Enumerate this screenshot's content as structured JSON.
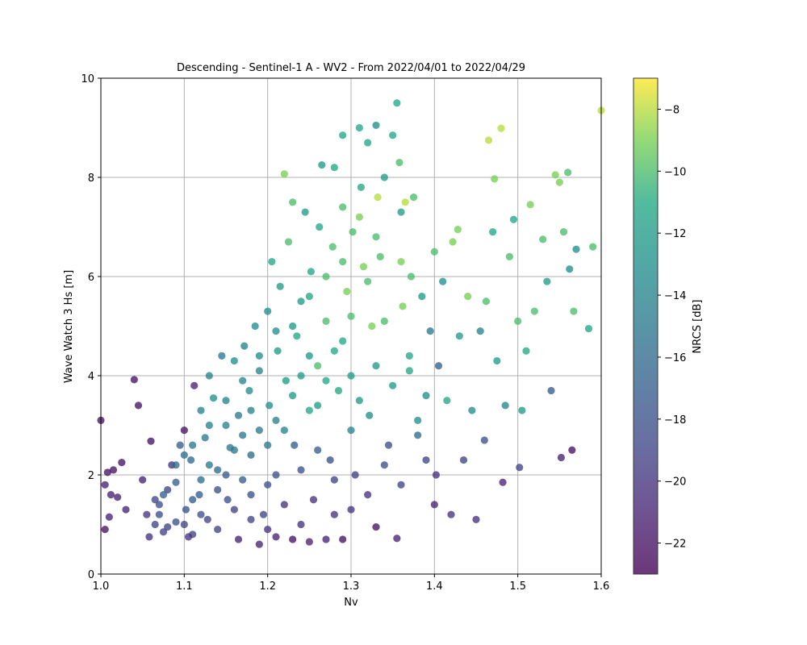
{
  "chart_data": {
    "type": "scatter",
    "title": "Descending - Sentinel-1 A - WV2 - From 2022/04/01 to 2022/04/29",
    "xlabel": "Nv",
    "ylabel": "Wave Watch 3 Hs [m]",
    "xlim": [
      1.0,
      1.6
    ],
    "ylim": [
      0,
      10
    ],
    "xticks": [
      1.0,
      1.1,
      1.2,
      1.3,
      1.4,
      1.5,
      1.6
    ],
    "xtick_labels": [
      "1.0",
      "1.1",
      "1.2",
      "1.3",
      "1.4",
      "1.5",
      "1.6"
    ],
    "yticks": [
      0,
      2,
      4,
      6,
      8,
      10
    ],
    "ytick_labels": [
      "0",
      "2",
      "4",
      "6",
      "8",
      "10"
    ],
    "grid": true,
    "colormap": "viridis",
    "colorbar": {
      "label": "NRCS [dB]",
      "range": [
        -23,
        -7
      ],
      "ticks": [
        -22,
        -20,
        -18,
        -16,
        -14,
        -12,
        -10,
        -8
      ],
      "tick_labels": [
        "−22",
        "−20",
        "−18",
        "−16",
        "−14",
        "−12",
        "−10",
        "−8"
      ]
    },
    "points": [
      [
        1.0,
        3.1,
        -22
      ],
      [
        1.005,
        1.8,
        -21
      ],
      [
        1.008,
        2.05,
        -22
      ],
      [
        1.01,
        1.15,
        -21
      ],
      [
        1.015,
        2.1,
        -22
      ],
      [
        1.02,
        1.55,
        -21
      ],
      [
        1.005,
        0.9,
        -22
      ],
      [
        1.012,
        1.6,
        -21
      ],
      [
        1.025,
        2.25,
        -22
      ],
      [
        1.03,
        1.3,
        -21
      ],
      [
        1.04,
        3.92,
        -22
      ],
      [
        1.045,
        3.4,
        -22
      ],
      [
        1.05,
        1.9,
        -21
      ],
      [
        1.055,
        1.2,
        -20
      ],
      [
        1.06,
        2.68,
        -22
      ],
      [
        1.058,
        0.75,
        -20
      ],
      [
        1.065,
        1.5,
        -19
      ],
      [
        1.07,
        1.4,
        -18
      ],
      [
        1.075,
        0.85,
        -19
      ],
      [
        1.08,
        1.7,
        -19
      ],
      [
        1.085,
        2.2,
        -20
      ],
      [
        1.09,
        1.05,
        -18
      ],
      [
        1.095,
        2.6,
        -17
      ],
      [
        1.1,
        2.9,
        -22
      ],
      [
        1.102,
        1.3,
        -18
      ],
      [
        1.108,
        2.3,
        -16
      ],
      [
        1.11,
        0.8,
        -19
      ],
      [
        1.112,
        3.8,
        -21
      ],
      [
        1.118,
        1.6,
        -17
      ],
      [
        1.12,
        3.3,
        -14
      ],
      [
        1.125,
        2.75,
        -15
      ],
      [
        1.128,
        1.1,
        -19
      ],
      [
        1.13,
        4.0,
        -14
      ],
      [
        1.135,
        3.55,
        -13
      ],
      [
        1.14,
        2.1,
        -16
      ],
      [
        1.145,
        4.4,
        -15
      ],
      [
        1.15,
        3.0,
        -14
      ],
      [
        1.152,
        1.5,
        -18
      ],
      [
        1.155,
        2.55,
        -15
      ],
      [
        1.16,
        4.3,
        -13
      ],
      [
        1.165,
        3.2,
        -15
      ],
      [
        1.17,
        1.9,
        -17
      ],
      [
        1.172,
        4.6,
        -14
      ],
      [
        1.178,
        3.7,
        -13
      ],
      [
        1.18,
        2.4,
        -16
      ],
      [
        1.185,
        5.0,
        -13
      ],
      [
        1.19,
        4.1,
        -14
      ],
      [
        1.195,
        1.2,
        -19
      ],
      [
        1.2,
        5.3,
        -13
      ],
      [
        1.202,
        3.4,
        -13
      ],
      [
        1.205,
        6.3,
        -11
      ],
      [
        1.21,
        2.0,
        -18
      ],
      [
        1.212,
        4.5,
        -12
      ],
      [
        1.215,
        5.8,
        -12
      ],
      [
        1.22,
        8.07,
        -9
      ],
      [
        1.222,
        3.9,
        -12
      ],
      [
        1.225,
        6.7,
        -10
      ],
      [
        1.23,
        7.5,
        -10
      ],
      [
        1.232,
        2.6,
        -17
      ],
      [
        1.235,
        4.8,
        -11
      ],
      [
        1.24,
        5.5,
        -12
      ],
      [
        1.245,
        7.3,
        -12
      ],
      [
        1.25,
        3.3,
        -11
      ],
      [
        1.252,
        6.1,
        -11
      ],
      [
        1.255,
        1.5,
        -20
      ],
      [
        1.26,
        4.2,
        -10
      ],
      [
        1.262,
        7.0,
        -11
      ],
      [
        1.265,
        8.25,
        -12
      ],
      [
        1.27,
        5.1,
        -10
      ],
      [
        1.275,
        2.3,
        -18
      ],
      [
        1.278,
        6.6,
        -10
      ],
      [
        1.28,
        8.2,
        -11
      ],
      [
        1.285,
        3.7,
        -11
      ],
      [
        1.29,
        7.4,
        -10
      ],
      [
        1.29,
        8.85,
        -11
      ],
      [
        1.295,
        5.7,
        -9
      ],
      [
        1.3,
        4.0,
        -12
      ],
      [
        1.302,
        6.9,
        -10
      ],
      [
        1.305,
        2.0,
        -19
      ],
      [
        1.31,
        9.0,
        -11
      ],
      [
        1.312,
        7.8,
        -11
      ],
      [
        1.315,
        6.2,
        -9
      ],
      [
        1.32,
        8.7,
        -11
      ],
      [
        1.322,
        3.2,
        -13
      ],
      [
        1.325,
        5.0,
        -9
      ],
      [
        1.33,
        9.05,
        -13
      ],
      [
        1.332,
        7.6,
        -8
      ],
      [
        1.335,
        6.4,
        -10
      ],
      [
        1.34,
        8.0,
        -12
      ],
      [
        1.345,
        2.6,
        -18
      ],
      [
        1.35,
        8.85,
        -11
      ],
      [
        1.355,
        9.5,
        -11
      ],
      [
        1.358,
        8.3,
        -10
      ],
      [
        1.36,
        7.3,
        -12
      ],
      [
        1.362,
        5.4,
        -9
      ],
      [
        1.365,
        7.5,
        -8
      ],
      [
        1.37,
        4.4,
        -11
      ],
      [
        1.372,
        6.0,
        -10
      ],
      [
        1.375,
        7.6,
        -10
      ],
      [
        1.38,
        3.1,
        -13
      ],
      [
        1.385,
        5.6,
        -12
      ],
      [
        1.39,
        2.3,
        -19
      ],
      [
        1.395,
        4.9,
        -15
      ],
      [
        1.4,
        6.5,
        -10
      ],
      [
        1.402,
        2.0,
        -20
      ],
      [
        1.405,
        4.2,
        -17
      ],
      [
        1.41,
        5.9,
        -13
      ],
      [
        1.415,
        3.5,
        -11
      ],
      [
        1.42,
        1.2,
        -20
      ],
      [
        1.422,
        6.7,
        -9
      ],
      [
        1.428,
        6.95,
        -9
      ],
      [
        1.43,
        4.8,
        -12
      ],
      [
        1.435,
        2.3,
        -19
      ],
      [
        1.44,
        5.6,
        -9
      ],
      [
        1.445,
        3.3,
        -13
      ],
      [
        1.45,
        1.1,
        -20
      ],
      [
        1.455,
        4.9,
        -14
      ],
      [
        1.46,
        2.7,
        -18
      ],
      [
        1.462,
        5.5,
        -10
      ],
      [
        1.465,
        8.75,
        -8
      ],
      [
        1.47,
        6.9,
        -11
      ],
      [
        1.472,
        7.97,
        -9
      ],
      [
        1.475,
        4.3,
        -12
      ],
      [
        1.48,
        8.99,
        -8
      ],
      [
        1.482,
        1.85,
        -21
      ],
      [
        1.485,
        3.4,
        -14
      ],
      [
        1.49,
        6.4,
        -10
      ],
      [
        1.495,
        7.15,
        -11
      ],
      [
        1.5,
        5.1,
        -10
      ],
      [
        1.502,
        2.15,
        -19
      ],
      [
        1.505,
        3.3,
        -12
      ],
      [
        1.51,
        4.5,
        -11
      ],
      [
        1.515,
        7.45,
        -9
      ],
      [
        1.52,
        5.3,
        -10
      ],
      [
        1.53,
        6.75,
        -10
      ],
      [
        1.535,
        5.9,
        -12
      ],
      [
        1.54,
        3.7,
        -17
      ],
      [
        1.545,
        8.05,
        -9
      ],
      [
        1.55,
        7.9,
        -9
      ],
      [
        1.552,
        2.35,
        -21
      ],
      [
        1.555,
        6.9,
        -10
      ],
      [
        1.56,
        8.1,
        -10
      ],
      [
        1.562,
        6.15,
        -13
      ],
      [
        1.565,
        2.5,
        -22
      ],
      [
        1.567,
        5.3,
        -10
      ],
      [
        1.57,
        6.55,
        -13
      ],
      [
        1.585,
        4.95,
        -11
      ],
      [
        1.59,
        6.6,
        -10
      ],
      [
        1.6,
        9.35,
        -8
      ],
      [
        1.11,
        1.5,
        -17
      ],
      [
        1.12,
        1.9,
        -16
      ],
      [
        1.13,
        2.2,
        -15
      ],
      [
        1.14,
        1.7,
        -18
      ],
      [
        1.15,
        2.0,
        -17
      ],
      [
        1.16,
        1.3,
        -19
      ],
      [
        1.17,
        2.8,
        -15
      ],
      [
        1.18,
        1.6,
        -18
      ],
      [
        1.19,
        2.9,
        -15
      ],
      [
        1.2,
        1.8,
        -18
      ],
      [
        1.21,
        3.1,
        -14
      ],
      [
        1.22,
        1.4,
        -20
      ],
      [
        1.23,
        3.6,
        -12
      ],
      [
        1.24,
        2.1,
        -18
      ],
      [
        1.25,
        4.4,
        -12
      ],
      [
        1.26,
        2.5,
        -17
      ],
      [
        1.27,
        3.9,
        -11
      ],
      [
        1.28,
        1.9,
        -19
      ],
      [
        1.29,
        4.7,
        -11
      ],
      [
        1.3,
        2.9,
        -14
      ],
      [
        1.31,
        3.5,
        -12
      ],
      [
        1.32,
        1.6,
        -20
      ],
      [
        1.33,
        4.2,
        -12
      ],
      [
        1.34,
        2.2,
        -18
      ],
      [
        1.35,
        3.8,
        -12
      ],
      [
        1.36,
        1.8,
        -19
      ],
      [
        1.37,
        4.1,
        -11
      ],
      [
        1.38,
        2.8,
        -16
      ],
      [
        1.39,
        3.6,
        -13
      ],
      [
        1.4,
        1.4,
        -21
      ],
      [
        1.07,
        1.2,
        -18
      ],
      [
        1.08,
        0.95,
        -19
      ],
      [
        1.09,
        1.85,
        -17
      ],
      [
        1.1,
        2.4,
        -16
      ],
      [
        1.1,
        1.0,
        -19
      ],
      [
        1.105,
        0.75,
        -20
      ],
      [
        1.165,
        0.7,
        -21
      ],
      [
        1.19,
        0.6,
        -21
      ],
      [
        1.21,
        0.75,
        -21
      ],
      [
        1.23,
        0.7,
        -22
      ],
      [
        1.25,
        0.65,
        -21
      ],
      [
        1.27,
        0.7,
        -21
      ],
      [
        1.29,
        0.7,
        -22
      ],
      [
        1.33,
        0.95,
        -22
      ],
      [
        1.355,
        0.72,
        -21
      ],
      [
        1.3,
        1.3,
        -20
      ],
      [
        1.28,
        1.2,
        -20
      ],
      [
        1.24,
        1.0,
        -20
      ],
      [
        1.2,
        0.9,
        -20
      ],
      [
        1.18,
        1.1,
        -19
      ],
      [
        1.14,
        0.9,
        -19
      ],
      [
        1.12,
        1.2,
        -18
      ],
      [
        1.16,
        2.5,
        -15
      ],
      [
        1.18,
        3.3,
        -14
      ],
      [
        1.2,
        2.6,
        -15
      ],
      [
        1.22,
        2.9,
        -14
      ],
      [
        1.24,
        4.0,
        -12
      ],
      [
        1.26,
        3.4,
        -12
      ],
      [
        1.28,
        4.5,
        -11
      ],
      [
        1.3,
        5.2,
        -10
      ],
      [
        1.32,
        5.9,
        -10
      ],
      [
        1.34,
        5.1,
        -10
      ],
      [
        1.36,
        6.3,
        -9
      ],
      [
        1.33,
        6.8,
        -10
      ],
      [
        1.31,
        7.2,
        -9
      ],
      [
        1.29,
        6.3,
        -10
      ],
      [
        1.27,
        6.0,
        -10
      ],
      [
        1.25,
        5.6,
        -11
      ],
      [
        1.23,
        5.0,
        -12
      ],
      [
        1.21,
        4.9,
        -13
      ],
      [
        1.19,
        4.4,
        -13
      ],
      [
        1.17,
        3.9,
        -14
      ],
      [
        1.15,
        3.5,
        -14
      ],
      [
        1.13,
        3.0,
        -14
      ],
      [
        1.11,
        2.6,
        -15
      ],
      [
        1.09,
        2.2,
        -16
      ],
      [
        1.075,
        1.6,
        -17
      ],
      [
        1.065,
        1.0,
        -19
      ]
    ]
  }
}
